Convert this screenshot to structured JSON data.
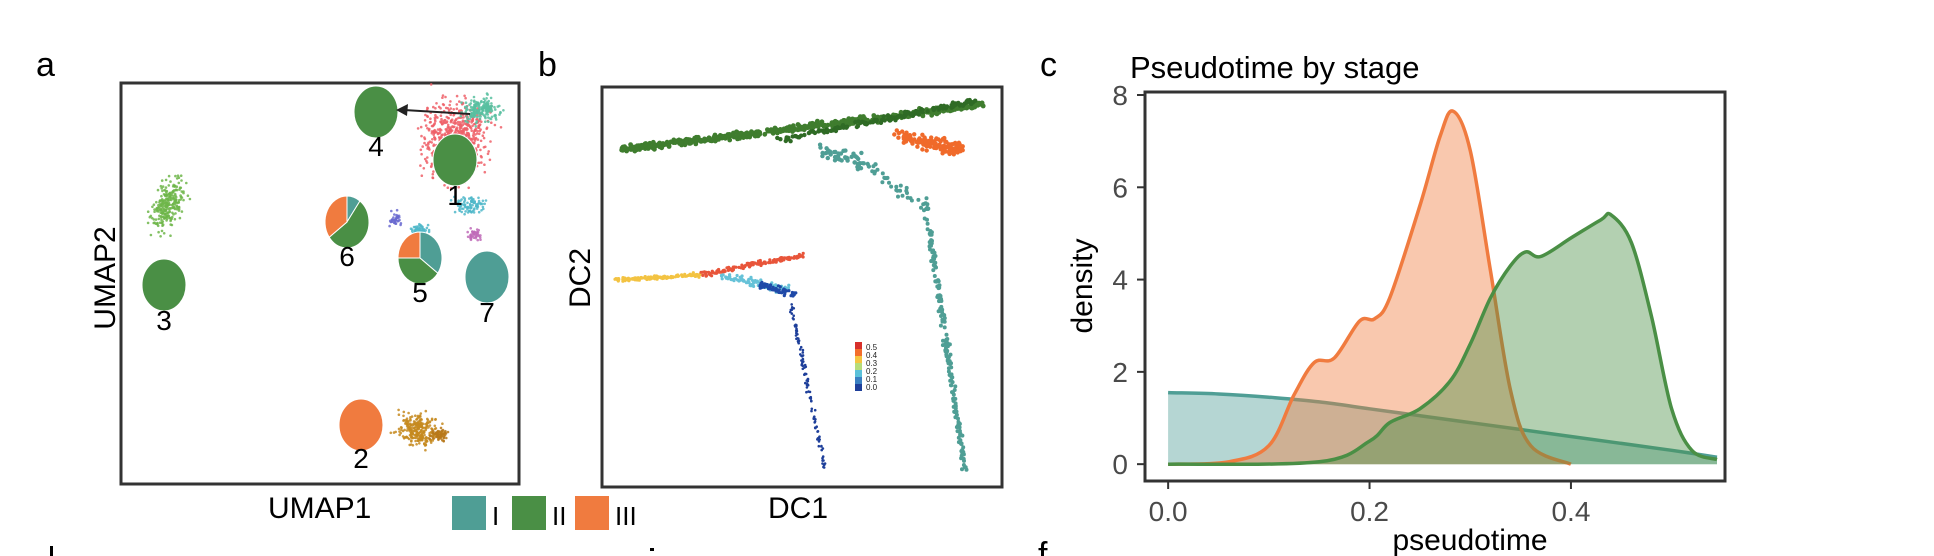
{
  "colors": {
    "I": "#4f9e95",
    "II": "#4a8f45",
    "III": "#f07b3f"
  },
  "panels": {
    "a": {
      "label": "a",
      "xlabel": "UMAP1",
      "ylabel": "UMAP2",
      "clusters": [
        {
          "id": "1",
          "label": "1",
          "I": 0.0,
          "II": 1.0,
          "III": 0.0
        },
        {
          "id": "2",
          "label": "2",
          "I": 0.0,
          "II": 0.0,
          "III": 1.0
        },
        {
          "id": "3",
          "label": "3",
          "I": 0.0,
          "II": 1.0,
          "III": 0.0
        },
        {
          "id": "4",
          "label": "4",
          "I": 0.0,
          "II": 1.0,
          "III": 0.0
        },
        {
          "id": "5",
          "label": "5",
          "I": 0.35,
          "II": 0.4,
          "III": 0.25
        },
        {
          "id": "6",
          "label": "6",
          "I": 0.1,
          "II": 0.55,
          "III": 0.35
        },
        {
          "id": "7",
          "label": "7",
          "I": 1.0,
          "II": 0.0,
          "III": 0.0
        }
      ],
      "legend": [
        {
          "key": "I",
          "label": "I"
        },
        {
          "key": "II",
          "label": "II"
        },
        {
          "key": "III",
          "label": "III"
        }
      ]
    },
    "b": {
      "label": "b",
      "xlabel": "DC1",
      "ylabel": "DC2",
      "colorbar_ticks": [
        "0.5",
        "0.4",
        "0.3",
        "0.2",
        "0.1",
        "0.0"
      ]
    },
    "c": {
      "label": "c",
      "f_label": "f"
    }
  },
  "chart_data": {
    "type": "area",
    "title": "Pseudotime by stage",
    "xlabel": "pseudotime",
    "ylabel": "density",
    "xlim": [
      -0.02,
      0.55
    ],
    "ylim": [
      -0.3,
      8.0
    ],
    "xticks": [
      0.0,
      0.2,
      0.4
    ],
    "xtick_labels": [
      "0.0",
      "0.2",
      "0.4"
    ],
    "yticks": [
      0,
      2,
      4,
      6,
      8
    ],
    "ytick_labels": [
      "0",
      "2",
      "4",
      "6",
      "8"
    ],
    "grid": false,
    "series": [
      {
        "key": "I",
        "x": [
          0.0,
          0.05,
          0.1,
          0.15,
          0.2,
          0.25,
          0.3,
          0.35,
          0.4,
          0.45,
          0.5,
          0.545
        ],
        "y": [
          1.55,
          1.52,
          1.45,
          1.35,
          1.2,
          1.05,
          0.9,
          0.75,
          0.6,
          0.45,
          0.3,
          0.15
        ]
      },
      {
        "key": "III",
        "x": [
          0.0,
          0.06,
          0.1,
          0.125,
          0.145,
          0.165,
          0.19,
          0.205,
          0.22,
          0.25,
          0.27,
          0.283,
          0.3,
          0.32,
          0.34,
          0.36,
          0.4
        ],
        "y": [
          0.0,
          0.05,
          0.4,
          1.5,
          2.2,
          2.3,
          3.1,
          3.15,
          3.6,
          5.6,
          7.1,
          7.65,
          6.8,
          4.2,
          1.6,
          0.4,
          0.0
        ]
      },
      {
        "key": "II",
        "x": [
          0.0,
          0.15,
          0.2,
          0.22,
          0.25,
          0.28,
          0.3,
          0.32,
          0.34,
          0.355,
          0.37,
          0.4,
          0.43,
          0.44,
          0.46,
          0.48,
          0.5,
          0.52,
          0.545
        ],
        "y": [
          0.0,
          0.05,
          0.5,
          0.9,
          1.2,
          1.8,
          2.6,
          3.6,
          4.3,
          4.6,
          4.5,
          4.9,
          5.3,
          5.4,
          4.8,
          3.2,
          1.2,
          0.3,
          0.1
        ]
      }
    ]
  }
}
